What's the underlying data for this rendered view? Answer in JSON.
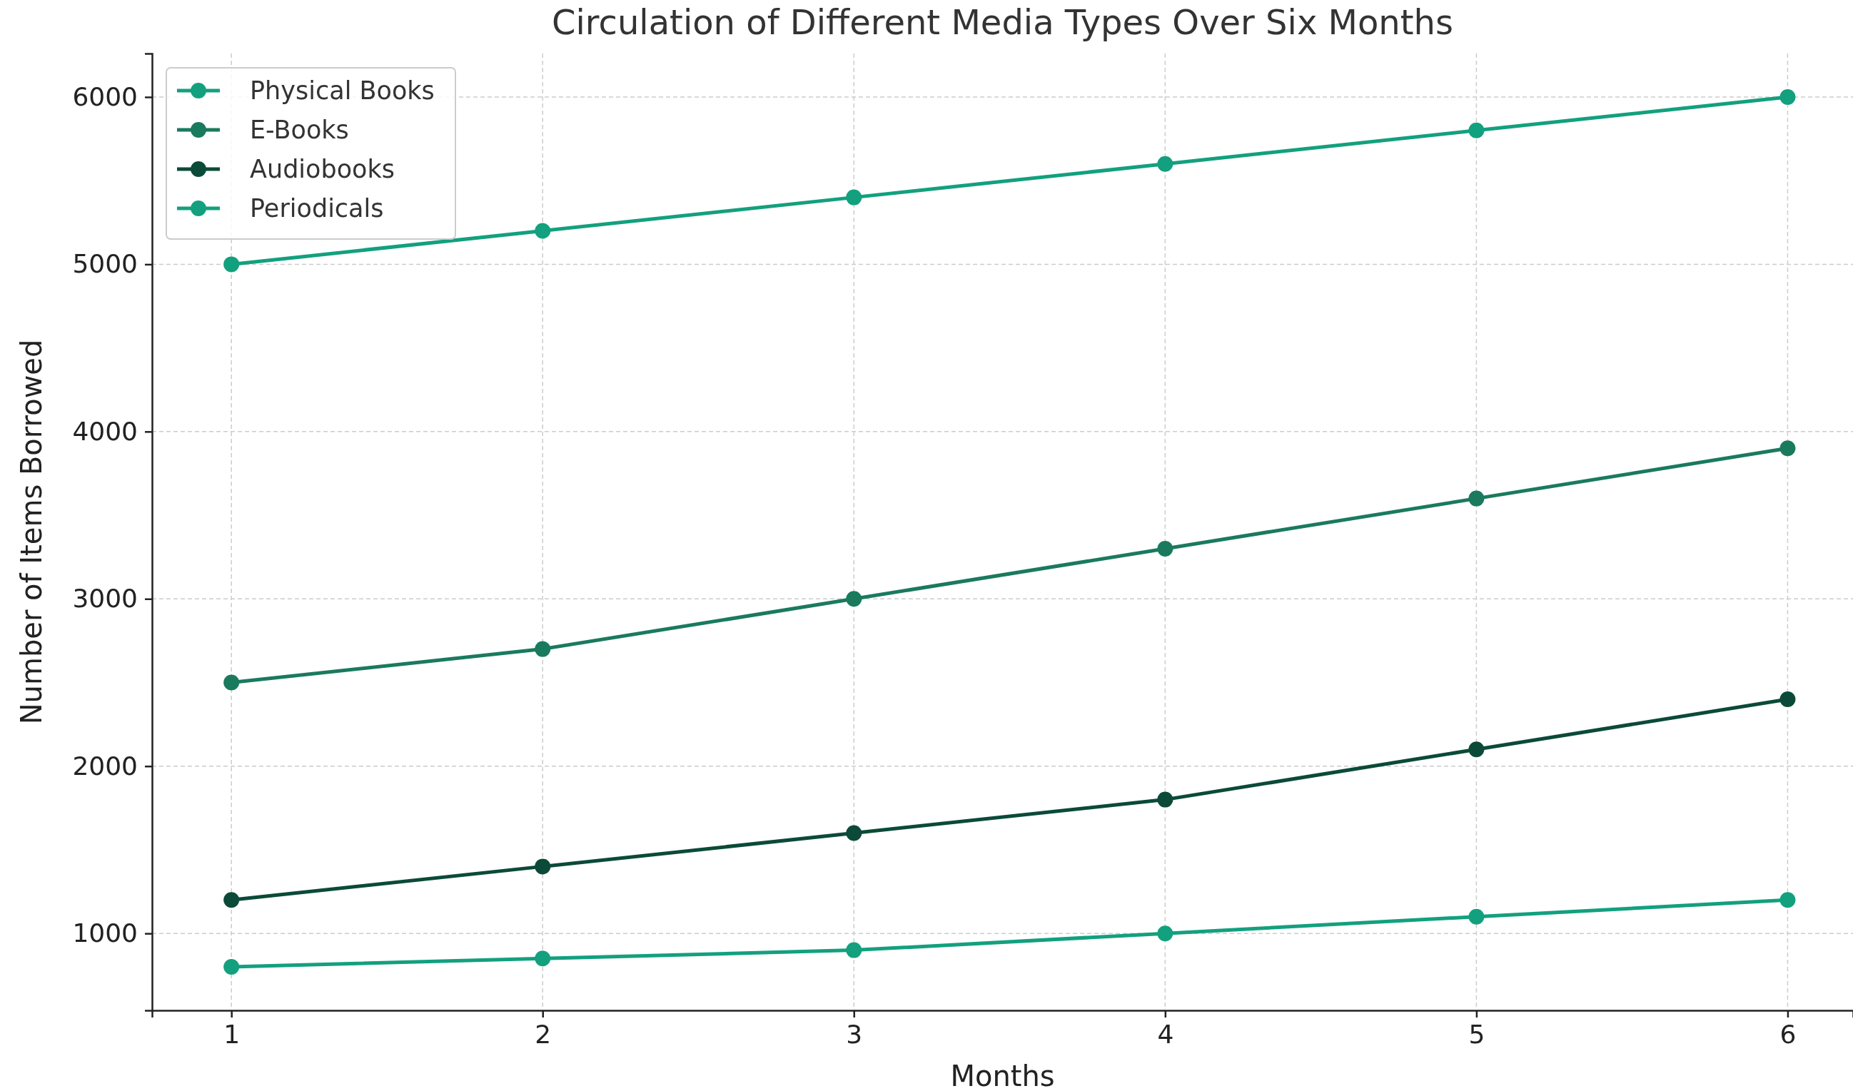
{
  "chart_data": {
    "type": "line",
    "title": "Circulation of Different Media Types Over Six Months",
    "xlabel": "Months",
    "ylabel": "Number of Items Borrowed",
    "x": [
      1,
      2,
      3,
      4,
      5,
      6
    ],
    "series": [
      {
        "name": "Physical Books",
        "color": "#13a07e",
        "values": [
          5000,
          5200,
          5400,
          5600,
          5800,
          6000
        ]
      },
      {
        "name": "E-Books",
        "color": "#1a7a5e",
        "values": [
          2500,
          2700,
          3000,
          3300,
          3600,
          3900
        ]
      },
      {
        "name": "Audiobooks",
        "color": "#0b4a38",
        "values": [
          1200,
          1400,
          1600,
          1800,
          2100,
          2400
        ]
      },
      {
        "name": "Periodicals",
        "color": "#13a07e",
        "values": [
          800,
          850,
          900,
          1000,
          1100,
          1200
        ]
      }
    ],
    "xlim": [
      0.745,
      6.21
    ],
    "xticks": [
      1,
      2,
      3,
      4,
      5,
      6
    ],
    "ylim": [
      540,
      6260
    ],
    "yticks": [
      1000,
      2000,
      3000,
      4000,
      5000,
      6000
    ],
    "grid": true,
    "legend": "top left",
    "marker": "circle",
    "line_style": "solid"
  }
}
